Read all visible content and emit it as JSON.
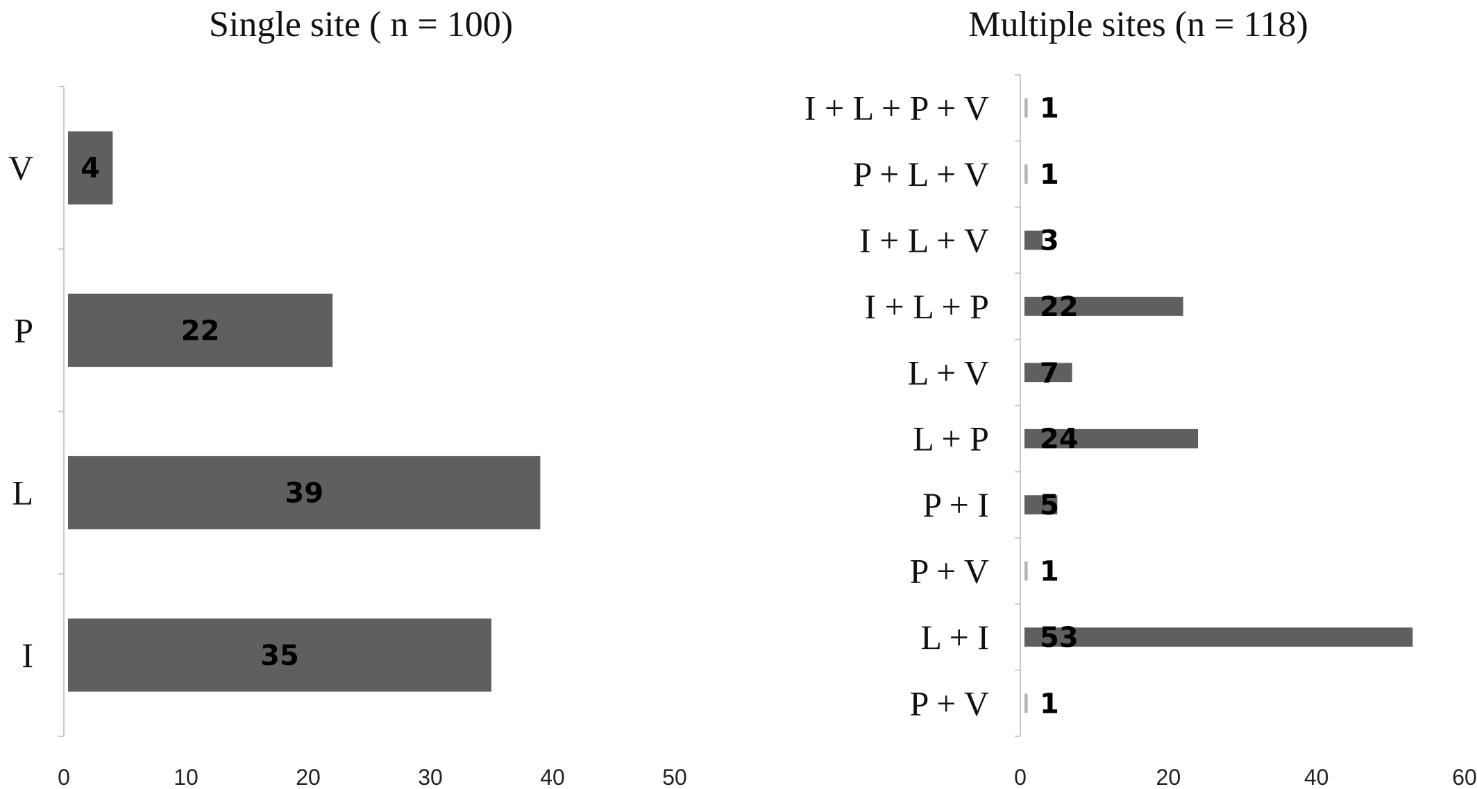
{
  "chart_data": [
    {
      "type": "bar",
      "orientation": "horizontal",
      "title": "Single site ( n = 100)",
      "categories": [
        "V",
        "P",
        "L",
        "I"
      ],
      "values": [
        4,
        22,
        39,
        35
      ],
      "xlim": [
        0,
        50
      ],
      "xticks": [
        0,
        10,
        20,
        30,
        40,
        50
      ],
      "bar_color": "#5f5f5f",
      "grid": false
    },
    {
      "type": "bar",
      "orientation": "horizontal",
      "title": "Multiple sites (n = 118)",
      "categories": [
        "I + L + P + V",
        "P + L + V",
        "I + L + V",
        "I + L + P",
        "L + V",
        "L + P",
        "P + I",
        "P + V",
        "L + I",
        "P + V"
      ],
      "values": [
        1,
        1,
        3,
        22,
        7,
        24,
        5,
        1,
        53,
        1
      ],
      "xlim": [
        0,
        60
      ],
      "xticks": [
        0,
        20,
        40,
        60
      ],
      "bar_color": "#5f5f5f",
      "grid": false
    }
  ]
}
